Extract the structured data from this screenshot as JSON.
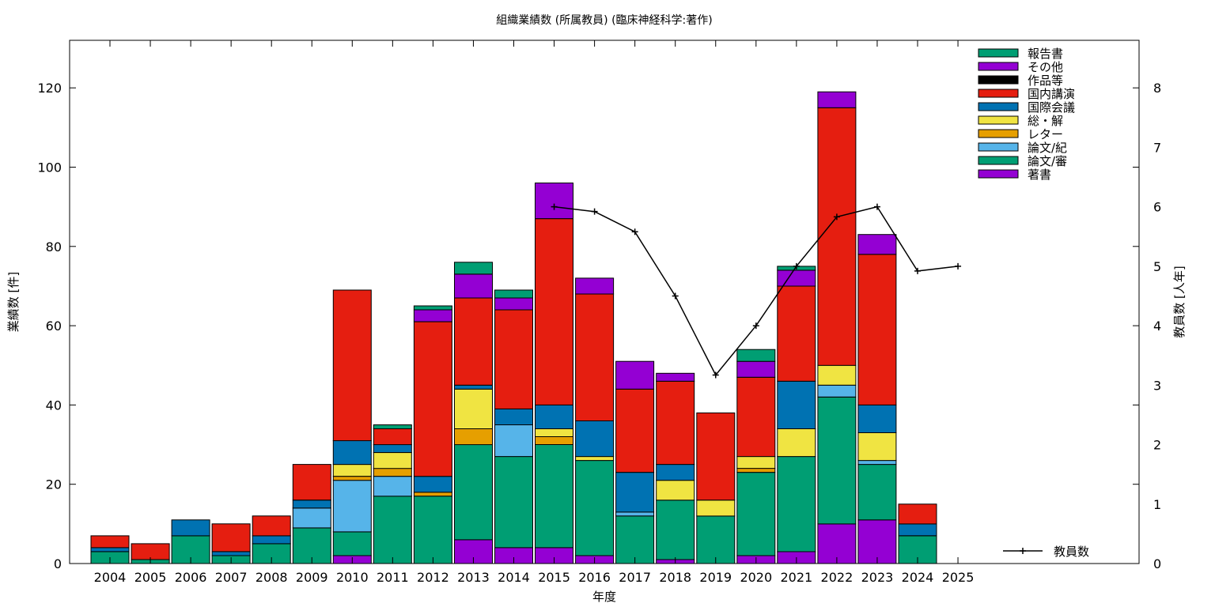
{
  "chart_data": {
    "type": "bar",
    "stacked": true,
    "title": "組織業績数 (所属教員) (臨床神経科学:著作)",
    "xlabel": "年度",
    "ylabel": "業績数 [件]",
    "y2label": "教員数 [人年]",
    "ylim": [
      0,
      132
    ],
    "y2lim": [
      0,
      8.8
    ],
    "yticks": [
      0,
      20,
      40,
      60,
      80,
      100,
      120
    ],
    "y2ticks": [
      0,
      1,
      2,
      3,
      4,
      5,
      6,
      7,
      8
    ],
    "grid": false,
    "legend_position": "top-right",
    "categories": [
      "2004",
      "2005",
      "2006",
      "2007",
      "2008",
      "2009",
      "2010",
      "2011",
      "2012",
      "2013",
      "2014",
      "2015",
      "2016",
      "2017",
      "2018",
      "2019",
      "2020",
      "2021",
      "2022",
      "2023",
      "2024",
      "2025"
    ],
    "series": [
      {
        "name": "著書",
        "color": "#9400d3",
        "values": [
          0,
          0,
          0,
          0,
          0,
          0,
          2,
          0,
          0,
          6,
          4,
          4,
          2,
          0,
          1,
          0,
          2,
          3,
          10,
          11,
          0,
          0
        ]
      },
      {
        "name": "論文/審",
        "color": "#009e73",
        "values": [
          3,
          1,
          7,
          2,
          5,
          9,
          6,
          17,
          17,
          24,
          23,
          26,
          24,
          12,
          15,
          12,
          21,
          24,
          32,
          14,
          7,
          0
        ]
      },
      {
        "name": "論文/紀",
        "color": "#56b4e9",
        "values": [
          0,
          0,
          0,
          0,
          0,
          5,
          13,
          5,
          0,
          0,
          8,
          0,
          0,
          1,
          0,
          0,
          0,
          0,
          3,
          1,
          0,
          0
        ]
      },
      {
        "name": "レター",
        "color": "#e69f00",
        "values": [
          0,
          0,
          0,
          0,
          0,
          0,
          1,
          2,
          1,
          4,
          0,
          2,
          0,
          0,
          0,
          0,
          1,
          0,
          0,
          0,
          0,
          0
        ]
      },
      {
        "name": "総・解",
        "color": "#f0e442",
        "values": [
          0,
          0,
          0,
          0,
          0,
          0,
          3,
          4,
          0,
          10,
          0,
          2,
          1,
          0,
          5,
          4,
          3,
          7,
          5,
          7,
          0,
          0
        ]
      },
      {
        "name": "国際会議",
        "color": "#0072b2",
        "values": [
          1,
          0,
          4,
          1,
          2,
          2,
          6,
          2,
          4,
          1,
          4,
          6,
          9,
          10,
          4,
          0,
          0,
          12,
          0,
          7,
          3,
          0
        ]
      },
      {
        "name": "国内講演",
        "color": "#e51e10",
        "values": [
          3,
          4,
          0,
          7,
          5,
          9,
          38,
          4,
          39,
          22,
          25,
          47,
          32,
          21,
          21,
          22,
          20,
          24,
          65,
          38,
          5,
          0
        ]
      },
      {
        "name": "作品等",
        "color": "#000000",
        "values": [
          0,
          0,
          0,
          0,
          0,
          0,
          0,
          0,
          0,
          0,
          0,
          0,
          0,
          0,
          0,
          0,
          0,
          0,
          0,
          0,
          0,
          0
        ]
      },
      {
        "name": "その他",
        "color": "#9400d3",
        "values": [
          0,
          0,
          0,
          0,
          0,
          0,
          0,
          0,
          3,
          6,
          3,
          9,
          4,
          7,
          2,
          0,
          4,
          4,
          4,
          5,
          0,
          0
        ]
      },
      {
        "name": "報告書",
        "color": "#009e73",
        "values": [
          0,
          0,
          0,
          0,
          0,
          0,
          0,
          1,
          1,
          3,
          2,
          0,
          0,
          0,
          0,
          0,
          3,
          1,
          0,
          0,
          0,
          0
        ]
      }
    ],
    "line_series": {
      "name": "教員数",
      "color": "#000000",
      "axis": "y2",
      "x": [
        "2015",
        "2016",
        "2017",
        "2018",
        "2019",
        "2020",
        "2021",
        "2022",
        "2023",
        "2024",
        "2025"
      ],
      "values": [
        6.0,
        5.92,
        5.58,
        4.5,
        3.17,
        4.0,
        5.0,
        5.83,
        6.0,
        4.92,
        5.0
      ]
    }
  }
}
